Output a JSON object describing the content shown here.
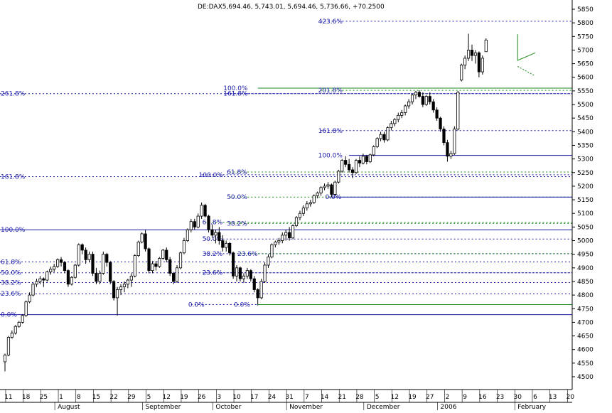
{
  "chart_data": {
    "type": "candlestick",
    "title": "DE:DAX",
    "title_suffix": "5,694.46, 5,743.01, 5,694.46, 5,736.66, +70.2500",
    "ylim": [
      4410,
      5875
    ],
    "y_ticks": [
      4500,
      4550,
      4600,
      4650,
      4700,
      4750,
      4800,
      4850,
      4900,
      4950,
      5000,
      5050,
      5100,
      5150,
      5200,
      5250,
      5300,
      5350,
      5400,
      5450,
      5500,
      5550,
      5600,
      5650,
      5700,
      5750,
      5800,
      5850
    ],
    "x_day_labels": [
      {
        "i": 1,
        "label": "11"
      },
      {
        "i": 6,
        "label": "18"
      },
      {
        "i": 11,
        "label": "25"
      },
      {
        "i": 16,
        "label": "1"
      },
      {
        "i": 21,
        "label": "8"
      },
      {
        "i": 26,
        "label": "15"
      },
      {
        "i": 31,
        "label": "22"
      },
      {
        "i": 36,
        "label": "29"
      },
      {
        "i": 41,
        "label": "5"
      },
      {
        "i": 46,
        "label": "12"
      },
      {
        "i": 51,
        "label": "19"
      },
      {
        "i": 56,
        "label": "26"
      },
      {
        "i": 61,
        "label": "3"
      },
      {
        "i": 66,
        "label": "10"
      },
      {
        "i": 71,
        "label": "17"
      },
      {
        "i": 76,
        "label": "24"
      },
      {
        "i": 81,
        "label": "31"
      },
      {
        "i": 86,
        "label": "7"
      },
      {
        "i": 91,
        "label": "14"
      },
      {
        "i": 96,
        "label": "21"
      },
      {
        "i": 101,
        "label": "28"
      },
      {
        "i": 106,
        "label": "5"
      },
      {
        "i": 111,
        "label": "12"
      },
      {
        "i": 116,
        "label": "19"
      },
      {
        "i": 121,
        "label": "27"
      },
      {
        "i": 126,
        "label": "2"
      },
      {
        "i": 131,
        "label": "9"
      },
      {
        "i": 136,
        "label": "16"
      },
      {
        "i": 141,
        "label": "23"
      },
      {
        "i": 146,
        "label": "30"
      },
      {
        "i": 151,
        "label": "6"
      },
      {
        "i": 156,
        "label": "13"
      },
      {
        "i": 161,
        "label": "20"
      }
    ],
    "x_month_labels": [
      {
        "i": 15,
        "label": "August"
      },
      {
        "i": 40,
        "label": "September"
      },
      {
        "i": 60,
        "label": "October"
      },
      {
        "i": 81,
        "label": "November"
      },
      {
        "i": 103,
        "label": "December"
      },
      {
        "i": 124,
        "label": "2006"
      },
      {
        "i": 146,
        "label": "February"
      }
    ],
    "fib_levels": [
      {
        "value": 5806,
        "label": "423.6%",
        "label_i": 90,
        "start_i": 90,
        "style": "dash-blue"
      },
      {
        "value": 5560,
        "label": "100.0%",
        "label_i": 63,
        "start_i": 72,
        "style": "solid-green"
      },
      {
        "value": 5552,
        "label": "201.8%",
        "label_i": 90,
        "start_i": 90,
        "style": "dash-green"
      },
      {
        "value": 5540,
        "label": "261.8%",
        "label_i": -1,
        "start_i": 3,
        "style": "dash-blue"
      },
      {
        "value": 5540,
        "label": "161.8%",
        "label_i": 63,
        "start_i": 63,
        "style": "dash-blue"
      },
      {
        "value": 5404,
        "label": "161.8%",
        "label_i": 90,
        "start_i": 90,
        "style": "dash-blue"
      },
      {
        "value": 5313,
        "label": "100.0%",
        "label_i": 90,
        "start_i": 98,
        "style": "solid-blue"
      },
      {
        "value": 5252,
        "label": "61.8%",
        "label_i": 64,
        "start_i": 64,
        "style": "dash-green"
      },
      {
        "value": 5242,
        "label": "100.0%",
        "label_i": 56,
        "start_i": 56,
        "style": "dash-blue"
      },
      {
        "value": 5235,
        "label": "161.8%",
        "label_i": -1,
        "start_i": 3,
        "style": "dash-blue"
      },
      {
        "value": 5160,
        "label": "50.0%",
        "label_i": 64,
        "start_i": 64,
        "style": "dash-green"
      },
      {
        "value": 5160,
        "label": "0.0%",
        "label_i": 92,
        "start_i": 92,
        "style": "solid-blue"
      },
      {
        "value": 5068,
        "label": "61.8%",
        "label_i": 57,
        "start_i": 57,
        "style": "dash-green"
      },
      {
        "value": 5063,
        "label": "38.2%",
        "label_i": 64,
        "start_i": 64,
        "style": "dash-green"
      },
      {
        "value": 5040,
        "label": "100.0%",
        "label_i": -1,
        "start_i": 3,
        "style": "solid-blue"
      },
      {
        "value": 5006,
        "label": "50.0%",
        "label_i": 57,
        "start_i": 57,
        "style": "dash-blue"
      },
      {
        "value": 4952,
        "label": "38.2%",
        "label_i": 57,
        "start_i": 57,
        "style": "dash-blue"
      },
      {
        "value": 4952,
        "label": "23.6%",
        "label_i": 67,
        "start_i": 67,
        "style": "dash-green"
      },
      {
        "value": 4922,
        "label": "61.8%",
        "label_i": -1,
        "start_i": 3,
        "style": "dash-blue"
      },
      {
        "value": 4882,
        "label": "50.0%",
        "label_i": -1,
        "start_i": 3,
        "style": "dash-blue"
      },
      {
        "value": 4882,
        "label": "23.6%",
        "label_i": 57,
        "start_i": 57,
        "style": "dash-blue"
      },
      {
        "value": 4846,
        "label": "38.2%",
        "label_i": -1,
        "start_i": 3,
        "style": "dash-blue"
      },
      {
        "value": 4805,
        "label": "23.6%",
        "label_i": -1,
        "start_i": 3,
        "style": "dash-blue"
      },
      {
        "value": 4765,
        "label": "0.0%",
        "label_i": 53,
        "start_i": 53,
        "style": "dash-blue"
      },
      {
        "value": 4765,
        "label": "0.0%",
        "label_i": 66,
        "start_i": 72,
        "style": "solid-green"
      },
      {
        "value": 4728,
        "label": "0.0%",
        "label_i": -1,
        "start_i": 3,
        "style": "solid-blue"
      }
    ],
    "triangle": [
      [
        146,
        5758
      ],
      [
        146,
        5662
      ],
      [
        151,
        5690
      ]
    ],
    "triangle_lower": [
      [
        146,
        5640
      ],
      [
        151,
        5605
      ]
    ],
    "candles": [
      [
        0,
        4555,
        4585,
        4520,
        4580
      ],
      [
        1,
        4580,
        4650,
        4575,
        4645
      ],
      [
        2,
        4645,
        4670,
        4640,
        4660
      ],
      [
        3,
        4660,
        4690,
        4655,
        4685
      ],
      [
        4,
        4685,
        4705,
        4680,
        4700
      ],
      [
        5,
        4700,
        4730,
        4695,
        4725
      ],
      [
        6,
        4725,
        4780,
        4720,
        4775
      ],
      [
        7,
        4775,
        4810,
        4770,
        4800
      ],
      [
        8,
        4800,
        4845,
        4795,
        4840
      ],
      [
        9,
        4840,
        4860,
        4830,
        4850
      ],
      [
        10,
        4850,
        4870,
        4840,
        4860
      ],
      [
        11,
        4860,
        4865,
        4830,
        4855
      ],
      [
        12,
        4855,
        4890,
        4850,
        4885
      ],
      [
        13,
        4885,
        4905,
        4875,
        4895
      ],
      [
        14,
        4895,
        4915,
        4885,
        4905
      ],
      [
        15,
        4905,
        4935,
        4900,
        4930
      ],
      [
        16,
        4930,
        4940,
        4905,
        4920
      ],
      [
        17,
        4920,
        4925,
        4880,
        4890
      ],
      [
        18,
        4890,
        4895,
        4830,
        4840
      ],
      [
        19,
        4840,
        4870,
        4835,
        4865
      ],
      [
        20,
        4865,
        4915,
        4860,
        4910
      ],
      [
        21,
        4910,
        4990,
        4905,
        4985
      ],
      [
        22,
        4985,
        4990,
        4950,
        4965
      ],
      [
        23,
        4965,
        4975,
        4915,
        4930
      ],
      [
        24,
        4930,
        4960,
        4920,
        4950
      ],
      [
        25,
        4950,
        4960,
        4870,
        4880
      ],
      [
        26,
        4880,
        4900,
        4840,
        4850
      ],
      [
        27,
        4850,
        4890,
        4840,
        4880
      ],
      [
        28,
        4880,
        4960,
        4875,
        4950
      ],
      [
        29,
        4950,
        4955,
        4905,
        4920
      ],
      [
        30,
        4920,
        4925,
        4840,
        4850
      ],
      [
        31,
        4850,
        4855,
        4780,
        4790
      ],
      [
        32,
        4790,
        4830,
        4725,
        4820
      ],
      [
        33,
        4820,
        4840,
        4800,
        4830
      ],
      [
        34,
        4830,
        4850,
        4810,
        4840
      ],
      [
        35,
        4840,
        4860,
        4825,
        4855
      ],
      [
        36,
        4855,
        4880,
        4830,
        4870
      ],
      [
        37,
        4870,
        4950,
        4865,
        4945
      ],
      [
        38,
        4945,
        5000,
        4940,
        4995
      ],
      [
        39,
        4995,
        5030,
        4990,
        5025
      ],
      [
        40,
        5025,
        5040,
        4960,
        4970
      ],
      [
        41,
        4970,
        4975,
        4880,
        4890
      ],
      [
        42,
        4890,
        4925,
        4880,
        4915
      ],
      [
        43,
        4915,
        4925,
        4890,
        4905
      ],
      [
        44,
        4905,
        4940,
        4900,
        4935
      ],
      [
        45,
        4935,
        4970,
        4930,
        4965
      ],
      [
        46,
        4965,
        4975,
        4920,
        4930
      ],
      [
        47,
        4930,
        4940,
        4870,
        4880
      ],
      [
        48,
        4880,
        4885,
        4840,
        4850
      ],
      [
        49,
        4850,
        4910,
        4845,
        4900
      ],
      [
        50,
        4900,
        4960,
        4895,
        4955
      ],
      [
        51,
        4955,
        5010,
        4950,
        5000
      ],
      [
        52,
        5000,
        5045,
        4995,
        5040
      ],
      [
        53,
        5040,
        5080,
        5030,
        5070
      ],
      [
        54,
        5070,
        5080,
        5040,
        5050
      ],
      [
        55,
        5050,
        5100,
        5045,
        5090
      ],
      [
        56,
        5090,
        5140,
        5080,
        5130
      ],
      [
        57,
        5130,
        5135,
        5085,
        5090
      ],
      [
        58,
        5090,
        5095,
        5030,
        5040
      ],
      [
        59,
        5040,
        5060,
        5010,
        5020
      ],
      [
        60,
        5020,
        5040,
        4990,
        5030
      ],
      [
        61,
        5030,
        5050,
        4985,
        5000
      ],
      [
        62,
        5000,
        5020,
        4960,
        4975
      ],
      [
        63,
        4975,
        5000,
        4960,
        4990
      ],
      [
        64,
        4990,
        4995,
        4945,
        4955
      ],
      [
        65,
        4955,
        4960,
        4860,
        4870
      ],
      [
        66,
        4870,
        4910,
        4850,
        4900
      ],
      [
        67,
        4900,
        4905,
        4850,
        4860
      ],
      [
        68,
        4860,
        4880,
        4845,
        4870
      ],
      [
        69,
        4870,
        4900,
        4860,
        4890
      ],
      [
        70,
        4890,
        4895,
        4850,
        4860
      ],
      [
        71,
        4860,
        4870,
        4810,
        4820
      ],
      [
        72,
        4820,
        4825,
        4762,
        4790
      ],
      [
        73,
        4790,
        4860,
        4785,
        4850
      ],
      [
        74,
        4850,
        4920,
        4845,
        4910
      ],
      [
        75,
        4910,
        4950,
        4900,
        4940
      ],
      [
        76,
        4940,
        4990,
        4935,
        4985
      ],
      [
        77,
        4985,
        5000,
        4975,
        4995
      ],
      [
        78,
        4995,
        5010,
        4985,
        5000
      ],
      [
        79,
        5000,
        5030,
        4990,
        5020
      ],
      [
        80,
        5020,
        5040,
        5000,
        5030
      ],
      [
        81,
        5030,
        5050,
        5000,
        5010
      ],
      [
        82,
        5010,
        5060,
        5005,
        5055
      ],
      [
        83,
        5055,
        5090,
        5050,
        5085
      ],
      [
        84,
        5085,
        5110,
        5075,
        5100
      ],
      [
        85,
        5100,
        5130,
        5090,
        5120
      ],
      [
        86,
        5120,
        5145,
        5110,
        5135
      ],
      [
        87,
        5135,
        5150,
        5125,
        5140
      ],
      [
        88,
        5140,
        5170,
        5135,
        5165
      ],
      [
        89,
        5165,
        5180,
        5155,
        5175
      ],
      [
        90,
        5175,
        5200,
        5165,
        5195
      ],
      [
        91,
        5195,
        5210,
        5185,
        5200
      ],
      [
        92,
        5200,
        5215,
        5190,
        5205
      ],
      [
        93,
        5205,
        5210,
        5160,
        5170
      ],
      [
        94,
        5170,
        5220,
        5165,
        5215
      ],
      [
        95,
        5215,
        5260,
        5210,
        5255
      ],
      [
        96,
        5255,
        5300,
        5250,
        5295
      ],
      [
        97,
        5295,
        5310,
        5270,
        5280
      ],
      [
        98,
        5280,
        5300,
        5250,
        5260
      ],
      [
        99,
        5260,
        5270,
        5230,
        5250
      ],
      [
        100,
        5250,
        5300,
        5245,
        5295
      ],
      [
        101,
        5295,
        5310,
        5270,
        5285
      ],
      [
        102,
        5285,
        5320,
        5280,
        5310
      ],
      [
        103,
        5310,
        5315,
        5280,
        5290
      ],
      [
        104,
        5290,
        5320,
        5285,
        5315
      ],
      [
        105,
        5315,
        5350,
        5310,
        5345
      ],
      [
        106,
        5345,
        5380,
        5340,
        5375
      ],
      [
        107,
        5375,
        5400,
        5365,
        5390
      ],
      [
        108,
        5390,
        5400,
        5360,
        5370
      ],
      [
        109,
        5370,
        5420,
        5365,
        5415
      ],
      [
        110,
        5415,
        5440,
        5405,
        5430
      ],
      [
        111,
        5430,
        5450,
        5420,
        5445
      ],
      [
        112,
        5445,
        5470,
        5435,
        5460
      ],
      [
        113,
        5460,
        5480,
        5450,
        5470
      ],
      [
        114,
        5470,
        5500,
        5460,
        5495
      ],
      [
        115,
        5495,
        5520,
        5485,
        5510
      ],
      [
        116,
        5510,
        5540,
        5500,
        5535
      ],
      [
        117,
        5535,
        5550,
        5520,
        5545
      ],
      [
        118,
        5545,
        5552,
        5525,
        5530
      ],
      [
        119,
        5530,
        5545,
        5490,
        5500
      ],
      [
        120,
        5500,
        5535,
        5495,
        5530
      ],
      [
        121,
        5530,
        5545,
        5500,
        5510
      ],
      [
        122,
        5510,
        5520,
        5470,
        5480
      ],
      [
        123,
        5480,
        5490,
        5440,
        5450
      ],
      [
        124,
        5450,
        5455,
        5400,
        5410
      ],
      [
        125,
        5410,
        5420,
        5350,
        5360
      ],
      [
        126,
        5360,
        5370,
        5290,
        5310
      ],
      [
        127,
        5310,
        5330,
        5300,
        5320
      ],
      [
        128,
        5320,
        5420,
        5315,
        5410
      ],
      [
        129,
        5410,
        5550,
        5405,
        5545
      ],
      [
        130,
        5590,
        5650,
        5585,
        5645
      ],
      [
        131,
        5645,
        5680,
        5630,
        5670
      ],
      [
        132,
        5670,
        5760,
        5660,
        5700
      ],
      [
        133,
        5700,
        5720,
        5660,
        5680
      ],
      [
        134,
        5680,
        5700,
        5650,
        5690
      ],
      [
        135,
        5690,
        5695,
        5600,
        5620
      ],
      [
        136,
        5620,
        5680,
        5610,
        5670
      ],
      [
        137,
        5694,
        5743,
        5694,
        5737
      ]
    ],
    "candle_positions": [
      [
        0,
        0
      ],
      [
        1,
        1
      ],
      [
        2,
        2
      ],
      [
        3,
        3
      ],
      [
        4,
        4
      ],
      [
        5,
        5
      ],
      [
        6,
        6
      ],
      [
        7,
        7
      ],
      [
        8,
        8
      ],
      [
        9,
        9
      ]
    ]
  }
}
